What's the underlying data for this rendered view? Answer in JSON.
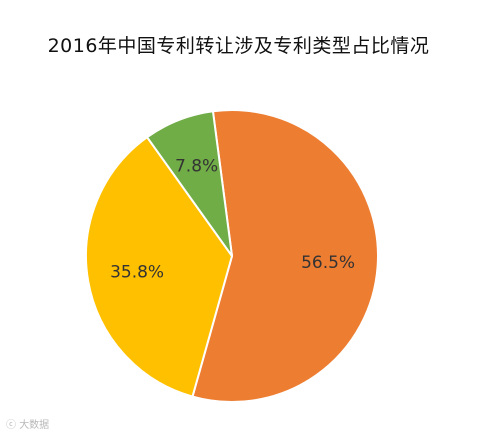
{
  "chart_data": {
    "type": "pie",
    "title": "2016年中国专利转让涉及专利类型占比情况",
    "categories": [
      "",
      "",
      ""
    ],
    "values": [
      56.5,
      35.8,
      7.8
    ],
    "labels": [
      "56.5%",
      "35.8%",
      "7.8%"
    ],
    "colors": [
      "#ED7D31",
      "#FFC000",
      "#70AD47"
    ],
    "start_angle_deg": -7.5,
    "direction": "clockwise",
    "legend": "none"
  },
  "watermark": {
    "text": "大数据"
  }
}
